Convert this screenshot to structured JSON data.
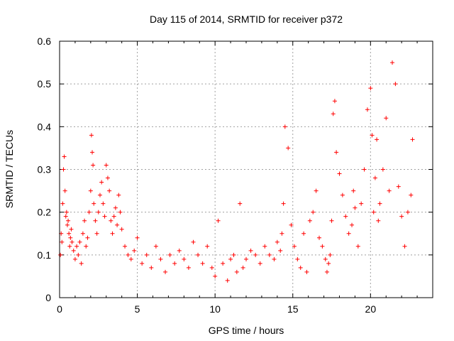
{
  "chart_data": {
    "type": "scatter",
    "title": "Day 115 of 2014, SRMTID for receiver p372",
    "xlabel": "GPS time / hours",
    "ylabel": "SRMTID / TECUs",
    "xlim": [
      0,
      24
    ],
    "ylim": [
      0,
      0.6
    ],
    "xticks": [
      0,
      5,
      10,
      15,
      20
    ],
    "xtick_labels": [
      "0",
      "5",
      "10",
      "15",
      "20"
    ],
    "yticks": [
      0,
      0.1,
      0.2,
      0.3,
      0.4,
      0.5,
      0.6
    ],
    "ytick_labels": [
      "0",
      "0.1",
      "0.2",
      "0.3",
      "0.4",
      "0.5",
      "0.6"
    ],
    "grid": true,
    "marker": "plus",
    "color": "#ff0000",
    "series": [
      {
        "name": "SRMTID",
        "x": [
          0.05,
          0.1,
          0.15,
          0.2,
          0.25,
          0.3,
          0.35,
          0.4,
          0.45,
          0.5,
          0.55,
          0.6,
          0.65,
          0.7,
          0.75,
          0.8,
          0.9,
          1.0,
          1.1,
          1.2,
          1.3,
          1.4,
          1.5,
          1.6,
          1.7,
          1.8,
          1.9,
          2.0,
          2.05,
          2.1,
          2.15,
          2.2,
          2.3,
          2.4,
          2.5,
          2.6,
          2.7,
          2.8,
          2.9,
          3.0,
          3.1,
          3.2,
          3.3,
          3.4,
          3.5,
          3.6,
          3.7,
          3.8,
          3.9,
          4.0,
          4.2,
          4.4,
          4.6,
          4.8,
          5.0,
          5.3,
          5.6,
          5.9,
          6.2,
          6.5,
          6.8,
          7.1,
          7.4,
          7.7,
          8.0,
          8.3,
          8.6,
          8.9,
          9.2,
          9.5,
          9.8,
          10.0,
          10.2,
          10.5,
          10.8,
          11.0,
          11.2,
          11.4,
          11.6,
          11.8,
          12.0,
          12.3,
          12.6,
          12.9,
          13.2,
          13.5,
          13.8,
          14.0,
          14.2,
          14.3,
          14.4,
          14.5,
          14.7,
          14.9,
          15.1,
          15.3,
          15.5,
          15.7,
          15.9,
          16.1,
          16.3,
          16.5,
          16.7,
          16.9,
          17.1,
          17.2,
          17.3,
          17.4,
          17.5,
          17.6,
          17.7,
          17.8,
          18.0,
          18.2,
          18.4,
          18.6,
          18.8,
          18.9,
          19.0,
          19.2,
          19.4,
          19.6,
          19.8,
          20.0,
          20.1,
          20.2,
          20.3,
          20.4,
          20.5,
          20.6,
          20.8,
          21.0,
          21.2,
          21.4,
          21.6,
          21.8,
          22.0,
          22.2,
          22.4,
          22.6,
          22.7
        ],
        "y": [
          0.1,
          0.15,
          0.13,
          0.22,
          0.3,
          0.33,
          0.25,
          0.19,
          0.2,
          0.17,
          0.18,
          0.15,
          0.12,
          0.14,
          0.16,
          0.13,
          0.11,
          0.09,
          0.12,
          0.1,
          0.13,
          0.08,
          0.15,
          0.18,
          0.12,
          0.14,
          0.2,
          0.25,
          0.38,
          0.34,
          0.31,
          0.22,
          0.18,
          0.15,
          0.2,
          0.24,
          0.27,
          0.22,
          0.19,
          0.31,
          0.28,
          0.25,
          0.18,
          0.15,
          0.19,
          0.21,
          0.17,
          0.24,
          0.2,
          0.16,
          0.12,
          0.1,
          0.09,
          0.11,
          0.14,
          0.08,
          0.1,
          0.07,
          0.12,
          0.09,
          0.06,
          0.1,
          0.08,
          0.11,
          0.09,
          0.07,
          0.13,
          0.1,
          0.08,
          0.12,
          0.07,
          0.05,
          0.18,
          0.08,
          0.04,
          0.09,
          0.1,
          0.06,
          0.22,
          0.07,
          0.09,
          0.11,
          0.1,
          0.08,
          0.12,
          0.1,
          0.09,
          0.13,
          0.11,
          0.15,
          0.22,
          0.4,
          0.35,
          0.17,
          0.12,
          0.09,
          0.07,
          0.15,
          0.06,
          0.18,
          0.2,
          0.25,
          0.14,
          0.12,
          0.09,
          0.06,
          0.08,
          0.1,
          0.18,
          0.43,
          0.46,
          0.34,
          0.29,
          0.24,
          0.19,
          0.15,
          0.17,
          0.25,
          0.21,
          0.12,
          0.22,
          0.3,
          0.44,
          0.49,
          0.38,
          0.2,
          0.28,
          0.37,
          0.18,
          0.22,
          0.3,
          0.42,
          0.25,
          0.55,
          0.5,
          0.26,
          0.19,
          0.12,
          0.2,
          0.24,
          0.37
        ]
      }
    ]
  }
}
